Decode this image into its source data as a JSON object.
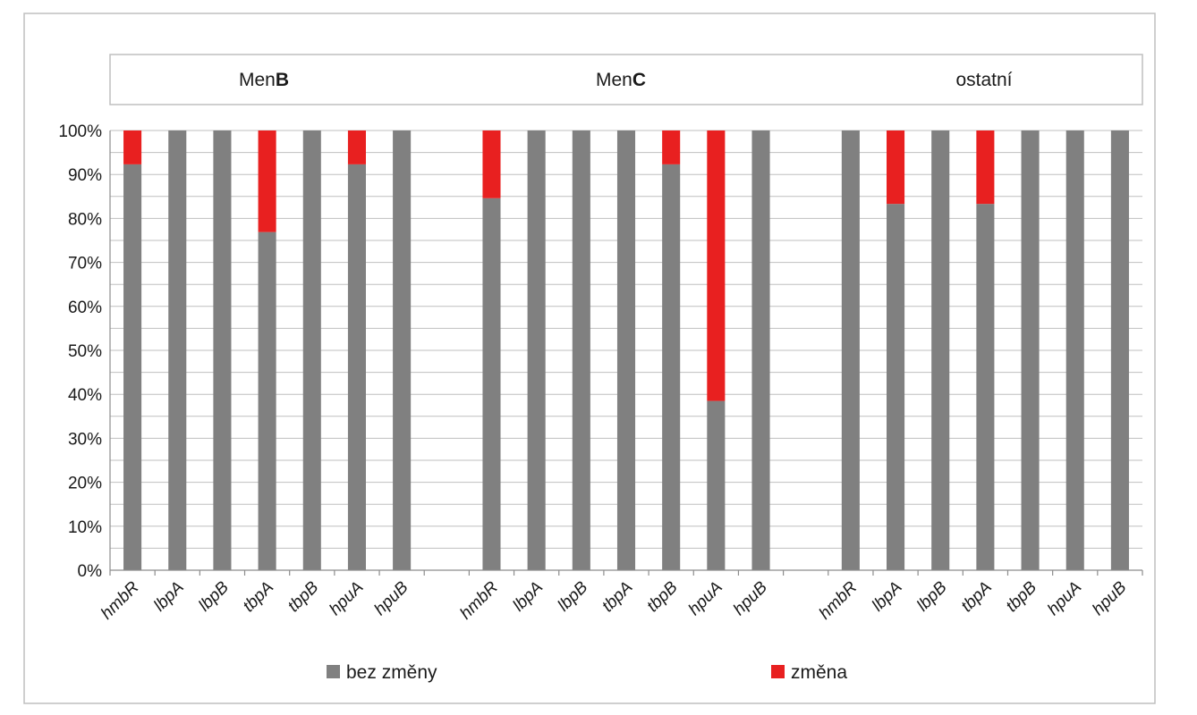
{
  "chart_data": {
    "type": "bar",
    "stacked": true,
    "percent": true,
    "groups": [
      {
        "title_prefix": "Men",
        "title_bold": "B",
        "categories": [
          "hmbR",
          "lbpA",
          "lbpB",
          "tbpA",
          "tbpB",
          "hpuA",
          "hpuB"
        ]
      },
      {
        "title_prefix": "Men",
        "title_bold": "C",
        "categories": [
          "hmbR",
          "lbpA",
          "lbpB",
          "tbpA",
          "tbpB",
          "hpuA",
          "hpuB"
        ]
      },
      {
        "title_prefix": "ostatní",
        "title_bold": "",
        "categories": [
          "hmbR",
          "lbpA",
          "lbpB",
          "tbpA",
          "tbpB",
          "hpuA",
          "hpuB"
        ]
      }
    ],
    "series": [
      {
        "name": "bez změny",
        "color": "#808080",
        "values": [
          92.3,
          100,
          100,
          76.9,
          100,
          92.3,
          100,
          84.6,
          100,
          100,
          100,
          92.3,
          38.5,
          100,
          100,
          83.3,
          100,
          83.3,
          100,
          100,
          100
        ]
      },
      {
        "name": "změna",
        "color": "#e82020",
        "values": [
          7.7,
          0,
          0,
          23.1,
          0,
          7.7,
          0,
          15.4,
          0,
          0,
          0,
          7.7,
          61.5,
          0,
          0,
          16.7,
          0,
          16.7,
          0,
          0,
          0
        ]
      }
    ],
    "ylim": [
      0,
      100
    ],
    "yticks": [
      "0%",
      "10%",
      "20%",
      "30%",
      "40%",
      "50%",
      "60%",
      "70%",
      "80%",
      "90%",
      "100%"
    ],
    "legend_position": "bottom",
    "grid": true
  }
}
